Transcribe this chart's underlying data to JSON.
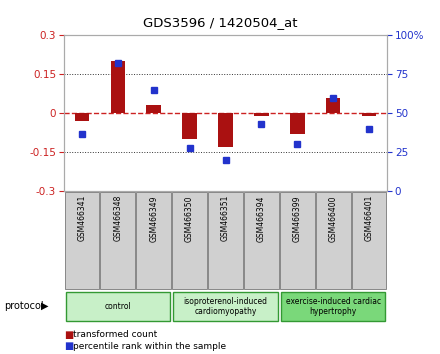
{
  "title": "GDS3596 / 1420504_at",
  "samples": [
    "GSM466341",
    "GSM466348",
    "GSM466349",
    "GSM466350",
    "GSM466351",
    "GSM466394",
    "GSM466399",
    "GSM466400",
    "GSM466401"
  ],
  "transformed_count": [
    -0.03,
    0.2,
    0.03,
    -0.1,
    -0.13,
    -0.01,
    -0.08,
    0.06,
    -0.01
  ],
  "percentile_rank": [
    37,
    82,
    65,
    28,
    20,
    43,
    30,
    60,
    40
  ],
  "ylim_left": [
    -0.3,
    0.3
  ],
  "ylim_right": [
    0,
    100
  ],
  "yticks_left": [
    -0.3,
    -0.15,
    0,
    0.15,
    0.3
  ],
  "yticks_right": [
    0,
    25,
    50,
    75,
    100
  ],
  "ytick_labels_right": [
    "0",
    "25",
    "50",
    "75",
    "100%"
  ],
  "groups": [
    {
      "label": "control",
      "start": 0,
      "end": 3,
      "color": "#c8f0c8"
    },
    {
      "label": "isoproterenol-induced\ncardiomyopathy",
      "start": 3,
      "end": 6,
      "color": "#c8f0c8"
    },
    {
      "label": "exercise-induced cardiac\nhypertrophy",
      "start": 6,
      "end": 9,
      "color": "#7ad87a"
    }
  ],
  "bar_color": "#aa1111",
  "dot_color": "#2233cc",
  "zero_line_color": "#cc2222",
  "bg_color": "#ffffff",
  "plot_bg": "#ffffff",
  "sample_box_color": "#d0d0d0",
  "sample_box_edge": "#888888",
  "group_edge_color": "#339933",
  "legend_items": [
    {
      "label": "transformed count",
      "color": "#aa1111"
    },
    {
      "label": "percentile rank within the sample",
      "color": "#2233cc"
    }
  ]
}
